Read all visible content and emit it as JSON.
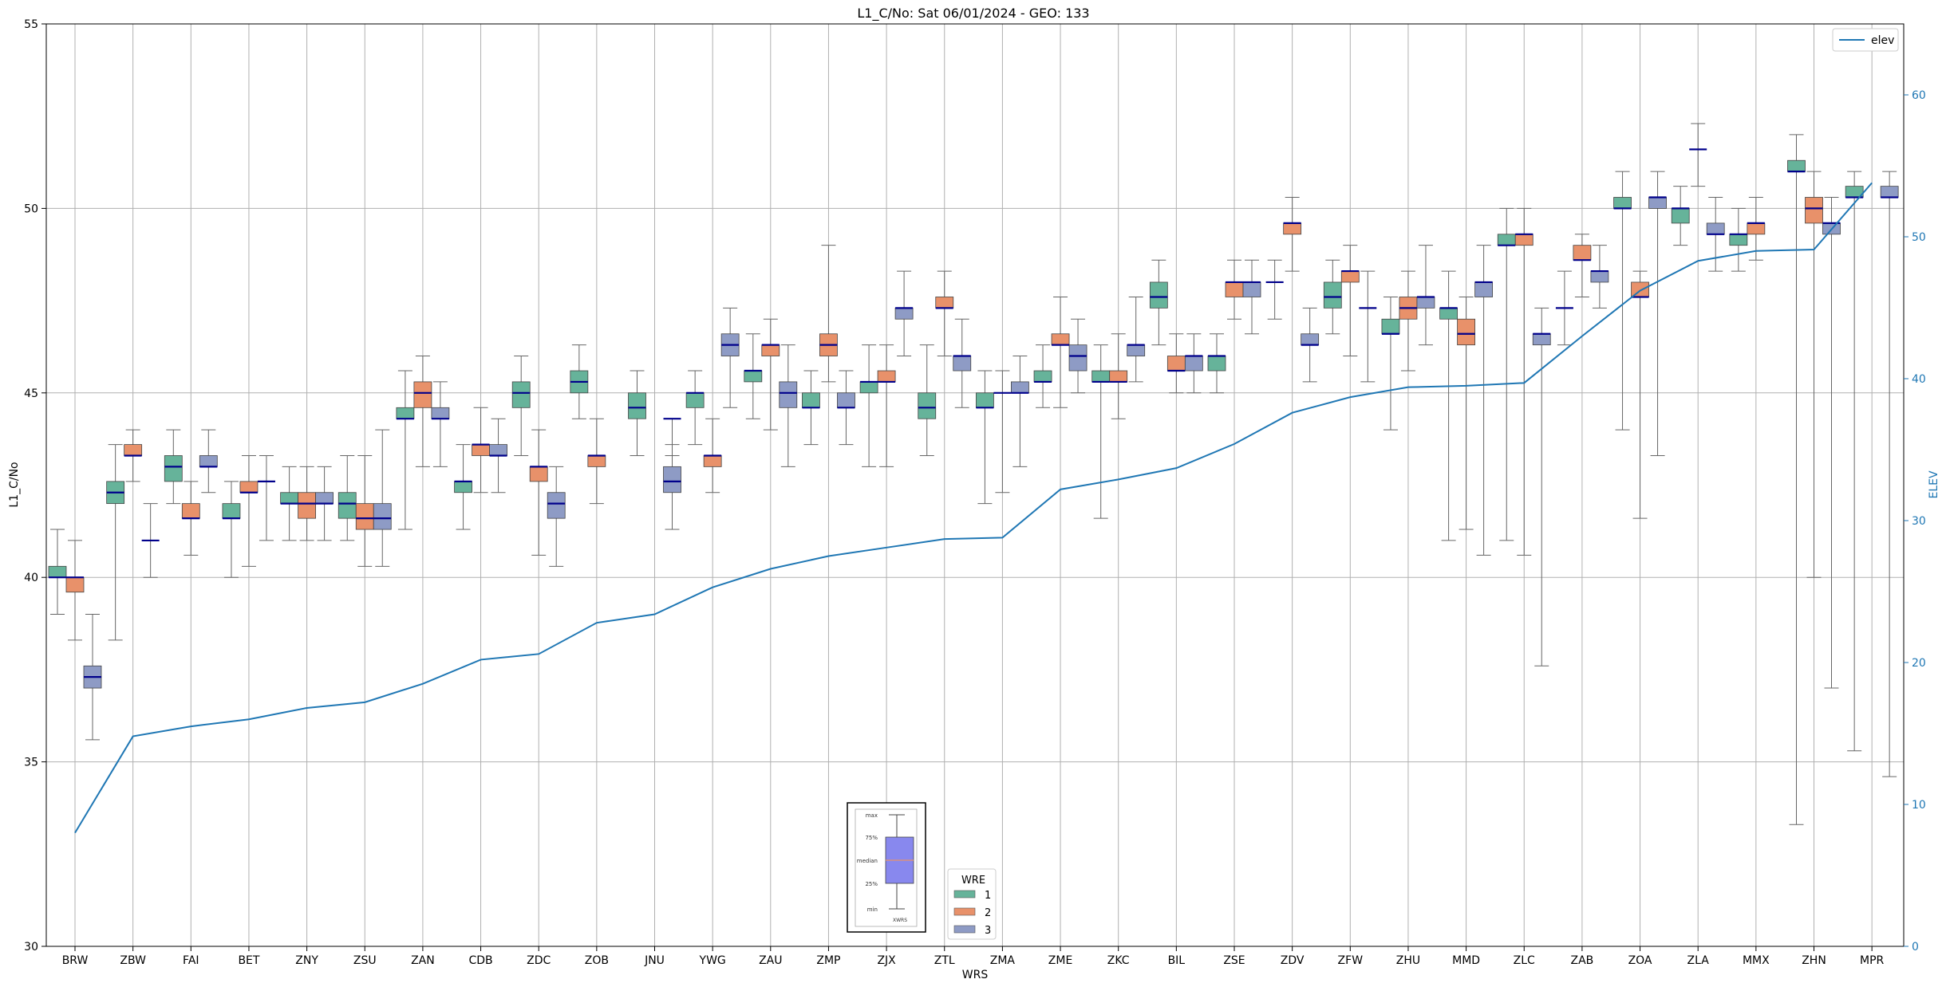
{
  "chart_data": {
    "type": "box",
    "title": "L1_C/No: Sat 06/01/2024 - GEO: 133",
    "xlabel": "WRS",
    "ylabel": "L1_C/No",
    "y2label": "ELEV",
    "ylim": [
      30,
      55
    ],
    "y2lim": [
      0,
      65
    ],
    "yticks": [
      30,
      35,
      40,
      45,
      50,
      55
    ],
    "y2ticks": [
      0,
      10,
      20,
      30,
      40,
      50,
      60
    ],
    "grid": true,
    "categories": [
      "BRW",
      "ZBW",
      "FAI",
      "BET",
      "ZNY",
      "ZSU",
      "ZAN",
      "CDB",
      "ZDC",
      "ZOB",
      "JNU",
      "YWG",
      "ZAU",
      "ZMP",
      "ZJX",
      "ZTL",
      "ZMA",
      "ZME",
      "ZKC",
      "BIL",
      "ZSE",
      "ZDV",
      "ZFW",
      "ZHU",
      "MMD",
      "ZLC",
      "ZAB",
      "ZOA",
      "ZLA",
      "MMX",
      "ZHN",
      "MPR"
    ],
    "colors": {
      "1": "#66b39a",
      "2": "#e8916a",
      "3": "#8e9bc5",
      "median": "#00008b",
      "whisker": "#666666",
      "elev": "#1f77b4",
      "y2axis": "#1f77b4"
    },
    "legend_wre": {
      "title": "WRE",
      "entries": [
        "1",
        "2",
        "3"
      ],
      "position": "bottom-center"
    },
    "legend_elev": {
      "entries": [
        "elev"
      ],
      "position": "top-right"
    },
    "boxes": [
      {
        "wrs": "BRW",
        "wre": 1,
        "min": 39.0,
        "q1": 40.0,
        "median": 40.0,
        "q3": 40.3,
        "max": 41.3
      },
      {
        "wrs": "BRW",
        "wre": 2,
        "min": 38.3,
        "q1": 39.6,
        "median": 40.0,
        "q3": 40.0,
        "max": 41.0
      },
      {
        "wrs": "BRW",
        "wre": 3,
        "min": 35.6,
        "q1": 37.0,
        "median": 37.3,
        "q3": 37.6,
        "max": 39.0
      },
      {
        "wrs": "ZBW",
        "wre": 1,
        "min": 38.3,
        "q1": 42.0,
        "median": 42.3,
        "q3": 42.6,
        "max": 43.6
      },
      {
        "wrs": "ZBW",
        "wre": 2,
        "min": 42.6,
        "q1": 43.3,
        "median": 43.3,
        "q3": 43.6,
        "max": 44.0
      },
      {
        "wrs": "ZBW",
        "wre": 3,
        "min": 40.0,
        "q1": 41.0,
        "median": 41.0,
        "q3": 41.0,
        "max": 42.0
      },
      {
        "wrs": "FAI",
        "wre": 1,
        "min": 42.0,
        "q1": 42.6,
        "median": 43.0,
        "q3": 43.3,
        "max": 44.0
      },
      {
        "wrs": "FAI",
        "wre": 2,
        "min": 40.6,
        "q1": 41.6,
        "median": 41.6,
        "q3": 42.0,
        "max": 42.6
      },
      {
        "wrs": "FAI",
        "wre": 3,
        "min": 42.3,
        "q1": 43.0,
        "median": 43.0,
        "q3": 43.3,
        "max": 44.0
      },
      {
        "wrs": "BET",
        "wre": 1,
        "min": 40.0,
        "q1": 41.6,
        "median": 41.6,
        "q3": 42.0,
        "max": 42.6
      },
      {
        "wrs": "BET",
        "wre": 2,
        "min": 40.3,
        "q1": 42.3,
        "median": 42.3,
        "q3": 42.6,
        "max": 43.3
      },
      {
        "wrs": "BET",
        "wre": 3,
        "min": 41.0,
        "q1": 42.6,
        "median": 42.6,
        "q3": 42.6,
        "max": 43.3
      },
      {
        "wrs": "ZNY",
        "wre": 1,
        "min": 41.0,
        "q1": 42.0,
        "median": 42.0,
        "q3": 42.3,
        "max": 43.0
      },
      {
        "wrs": "ZNY",
        "wre": 2,
        "min": 41.0,
        "q1": 41.6,
        "median": 42.0,
        "q3": 42.3,
        "max": 43.0
      },
      {
        "wrs": "ZNY",
        "wre": 3,
        "min": 41.0,
        "q1": 42.0,
        "median": 42.0,
        "q3": 42.3,
        "max": 43.0
      },
      {
        "wrs": "ZSU",
        "wre": 1,
        "min": 41.0,
        "q1": 41.6,
        "median": 42.0,
        "q3": 42.3,
        "max": 43.3
      },
      {
        "wrs": "ZSU",
        "wre": 2,
        "min": 40.3,
        "q1": 41.3,
        "median": 41.6,
        "q3": 42.0,
        "max": 43.3
      },
      {
        "wrs": "ZSU",
        "wre": 3,
        "min": 40.3,
        "q1": 41.3,
        "median": 41.6,
        "q3": 42.0,
        "max": 44.0
      },
      {
        "wrs": "ZAN",
        "wre": 1,
        "min": 41.3,
        "q1": 44.3,
        "median": 44.3,
        "q3": 44.6,
        "max": 45.6
      },
      {
        "wrs": "ZAN",
        "wre": 2,
        "min": 43.0,
        "q1": 44.6,
        "median": 45.0,
        "q3": 45.3,
        "max": 46.0
      },
      {
        "wrs": "ZAN",
        "wre": 3,
        "min": 43.0,
        "q1": 44.3,
        "median": 44.3,
        "q3": 44.6,
        "max": 45.3
      },
      {
        "wrs": "CDB",
        "wre": 1,
        "min": 41.3,
        "q1": 42.3,
        "median": 42.6,
        "q3": 42.6,
        "max": 43.6
      },
      {
        "wrs": "CDB",
        "wre": 2,
        "min": 42.3,
        "q1": 43.3,
        "median": 43.6,
        "q3": 43.6,
        "max": 44.6
      },
      {
        "wrs": "CDB",
        "wre": 3,
        "min": 42.3,
        "q1": 43.3,
        "median": 43.3,
        "q3": 43.6,
        "max": 44.3
      },
      {
        "wrs": "ZDC",
        "wre": 1,
        "min": 43.3,
        "q1": 44.6,
        "median": 45.0,
        "q3": 45.3,
        "max": 46.0
      },
      {
        "wrs": "ZDC",
        "wre": 2,
        "min": 40.6,
        "q1": 42.6,
        "median": 43.0,
        "q3": 43.0,
        "max": 44.0
      },
      {
        "wrs": "ZDC",
        "wre": 3,
        "min": 40.3,
        "q1": 41.6,
        "median": 42.0,
        "q3": 42.3,
        "max": 43.0
      },
      {
        "wrs": "ZOB",
        "wre": 1,
        "min": 44.3,
        "q1": 45.0,
        "median": 45.3,
        "q3": 45.6,
        "max": 46.3
      },
      {
        "wrs": "ZOB",
        "wre": 2,
        "min": 42.0,
        "q1": 43.0,
        "median": 43.3,
        "q3": 43.3,
        "max": 44.3
      },
      {
        "wrs": "JNU",
        "wre": 1,
        "min": 43.3,
        "q1": 44.3,
        "median": 44.6,
        "q3": 45.0,
        "max": 45.6
      },
      {
        "wrs": "JNU",
        "wre": 3,
        "min": 43.3,
        "q1": 44.3,
        "median": 44.3,
        "q3": 44.3,
        "max": 44.3
      },
      {
        "wrs": "JNU",
        "wre": 3,
        "min": 41.3,
        "q1": 42.3,
        "median": 42.6,
        "q3": 43.0,
        "max": 43.6
      },
      {
        "wrs": "YWG",
        "wre": 1,
        "min": 43.6,
        "q1": 44.6,
        "median": 45.0,
        "q3": 45.0,
        "max": 45.6
      },
      {
        "wrs": "YWG",
        "wre": 2,
        "min": 42.3,
        "q1": 43.0,
        "median": 43.3,
        "q3": 43.3,
        "max": 44.3
      },
      {
        "wrs": "YWG",
        "wre": 3,
        "min": 44.6,
        "q1": 46.0,
        "median": 46.3,
        "q3": 46.6,
        "max": 47.3
      },
      {
        "wrs": "ZAU",
        "wre": 1,
        "min": 44.3,
        "q1": 45.3,
        "median": 45.6,
        "q3": 45.6,
        "max": 46.6
      },
      {
        "wrs": "ZAU",
        "wre": 2,
        "min": 44.0,
        "q1": 46.0,
        "median": 46.3,
        "q3": 46.3,
        "max": 47.0
      },
      {
        "wrs": "ZAU",
        "wre": 3,
        "min": 43.0,
        "q1": 44.6,
        "median": 45.0,
        "q3": 45.3,
        "max": 46.3
      },
      {
        "wrs": "ZMP",
        "wre": 1,
        "min": 43.6,
        "q1": 44.6,
        "median": 44.6,
        "q3": 45.0,
        "max": 45.6
      },
      {
        "wrs": "ZMP",
        "wre": 2,
        "min": 45.3,
        "q1": 46.0,
        "median": 46.3,
        "q3": 46.6,
        "max": 49.0
      },
      {
        "wrs": "ZMP",
        "wre": 3,
        "min": 43.6,
        "q1": 44.6,
        "median": 44.6,
        "q3": 45.0,
        "max": 45.6
      },
      {
        "wrs": "ZJX",
        "wre": 1,
        "min": 43.0,
        "q1": 45.0,
        "median": 45.3,
        "q3": 45.3,
        "max": 46.3
      },
      {
        "wrs": "ZJX",
        "wre": 2,
        "min": 43.0,
        "q1": 45.3,
        "median": 45.3,
        "q3": 45.6,
        "max": 46.3
      },
      {
        "wrs": "ZJX",
        "wre": 3,
        "min": 46.0,
        "q1": 47.0,
        "median": 47.3,
        "q3": 47.3,
        "max": 48.3
      },
      {
        "wrs": "ZTL",
        "wre": 1,
        "min": 43.3,
        "q1": 44.3,
        "median": 44.6,
        "q3": 45.0,
        "max": 46.3
      },
      {
        "wrs": "ZTL",
        "wre": 2,
        "min": 46.0,
        "q1": 47.3,
        "median": 47.3,
        "q3": 47.6,
        "max": 48.3
      },
      {
        "wrs": "ZTL",
        "wre": 3,
        "min": 44.6,
        "q1": 45.6,
        "median": 46.0,
        "q3": 46.0,
        "max": 47.0
      },
      {
        "wrs": "ZMA",
        "wre": 1,
        "min": 42.0,
        "q1": 44.6,
        "median": 44.6,
        "q3": 45.0,
        "max": 45.6
      },
      {
        "wrs": "ZMA",
        "wre": 2,
        "min": 42.3,
        "q1": 45.0,
        "median": 45.0,
        "q3": 45.0,
        "max": 45.6
      },
      {
        "wrs": "ZMA",
        "wre": 3,
        "min": 43.0,
        "q1": 45.0,
        "median": 45.0,
        "q3": 45.3,
        "max": 46.0
      },
      {
        "wrs": "ZME",
        "wre": 1,
        "min": 44.6,
        "q1": 45.3,
        "median": 45.3,
        "q3": 45.6,
        "max": 46.3
      },
      {
        "wrs": "ZME",
        "wre": 2,
        "min": 44.6,
        "q1": 46.3,
        "median": 46.3,
        "q3": 46.6,
        "max": 47.6
      },
      {
        "wrs": "ZME",
        "wre": 3,
        "min": 45.0,
        "q1": 45.6,
        "median": 46.0,
        "q3": 46.3,
        "max": 47.0
      },
      {
        "wrs": "ZKC",
        "wre": 1,
        "min": 41.6,
        "q1": 45.3,
        "median": 45.3,
        "q3": 45.6,
        "max": 46.3
      },
      {
        "wrs": "ZKC",
        "wre": 2,
        "min": 44.3,
        "q1": 45.3,
        "median": 45.3,
        "q3": 45.6,
        "max": 46.6
      },
      {
        "wrs": "ZKC",
        "wre": 3,
        "min": 45.3,
        "q1": 46.0,
        "median": 46.3,
        "q3": 46.3,
        "max": 47.6
      },
      {
        "wrs": "BIL",
        "wre": 1,
        "min": 46.3,
        "q1": 47.3,
        "median": 47.6,
        "q3": 48.0,
        "max": 48.6
      },
      {
        "wrs": "BIL",
        "wre": 2,
        "min": 45.0,
        "q1": 45.6,
        "median": 45.6,
        "q3": 46.0,
        "max": 46.6
      },
      {
        "wrs": "BIL",
        "wre": 3,
        "min": 45.0,
        "q1": 45.6,
        "median": 46.0,
        "q3": 46.0,
        "max": 46.6
      },
      {
        "wrs": "ZSE",
        "wre": 1,
        "min": 45.0,
        "q1": 45.6,
        "median": 46.0,
        "q3": 46.0,
        "max": 46.6
      },
      {
        "wrs": "ZSE",
        "wre": 2,
        "min": 47.0,
        "q1": 47.6,
        "median": 48.0,
        "q3": 48.0,
        "max": 48.6
      },
      {
        "wrs": "ZSE",
        "wre": 3,
        "min": 46.6,
        "q1": 47.6,
        "median": 48.0,
        "q3": 48.0,
        "max": 48.6
      },
      {
        "wrs": "ZDV",
        "wre": 1,
        "min": 47.0,
        "q1": 48.0,
        "median": 48.0,
        "q3": 48.0,
        "max": 48.6
      },
      {
        "wrs": "ZDV",
        "wre": 2,
        "min": 48.3,
        "q1": 49.3,
        "median": 49.6,
        "q3": 49.6,
        "max": 50.3
      },
      {
        "wrs": "ZDV",
        "wre": 3,
        "min": 45.3,
        "q1": 46.3,
        "median": 46.3,
        "q3": 46.6,
        "max": 47.3
      },
      {
        "wrs": "ZFW",
        "wre": 1,
        "min": 46.6,
        "q1": 47.3,
        "median": 47.6,
        "q3": 48.0,
        "max": 48.6
      },
      {
        "wrs": "ZFW",
        "wre": 2,
        "min": 46.0,
        "q1": 48.0,
        "median": 48.3,
        "q3": 48.3,
        "max": 49.0
      },
      {
        "wrs": "ZFW",
        "wre": 3,
        "min": 45.3,
        "q1": 47.3,
        "median": 47.3,
        "q3": 47.3,
        "max": 48.3
      },
      {
        "wrs": "ZHU",
        "wre": 1,
        "min": 44.0,
        "q1": 46.6,
        "median": 46.6,
        "q3": 47.0,
        "max": 47.6
      },
      {
        "wrs": "ZHU",
        "wre": 2,
        "min": 45.6,
        "q1": 47.0,
        "median": 47.3,
        "q3": 47.6,
        "max": 48.3
      },
      {
        "wrs": "ZHU",
        "wre": 3,
        "min": 46.3,
        "q1": 47.3,
        "median": 47.6,
        "q3": 47.6,
        "max": 49.0
      },
      {
        "wrs": "MMD",
        "wre": 1,
        "min": 41.0,
        "q1": 47.0,
        "median": 47.3,
        "q3": 47.3,
        "max": 48.3
      },
      {
        "wrs": "MMD",
        "wre": 2,
        "min": 41.3,
        "q1": 46.3,
        "median": 46.6,
        "q3": 47.0,
        "max": 47.6
      },
      {
        "wrs": "MMD",
        "wre": 3,
        "min": 40.6,
        "q1": 47.6,
        "median": 48.0,
        "q3": 48.0,
        "max": 49.0
      },
      {
        "wrs": "ZLC",
        "wre": 1,
        "min": 41.0,
        "q1": 49.0,
        "median": 49.0,
        "q3": 49.3,
        "max": 50.0
      },
      {
        "wrs": "ZLC",
        "wre": 2,
        "min": 40.6,
        "q1": 49.0,
        "median": 49.3,
        "q3": 49.3,
        "max": 50.0
      },
      {
        "wrs": "ZLC",
        "wre": 3,
        "min": 37.6,
        "q1": 46.3,
        "median": 46.6,
        "q3": 46.6,
        "max": 47.3
      },
      {
        "wrs": "ZAB",
        "wre": 1,
        "min": 46.3,
        "q1": 47.3,
        "median": 47.3,
        "q3": 47.3,
        "max": 48.3
      },
      {
        "wrs": "ZAB",
        "wre": 2,
        "min": 47.6,
        "q1": 48.6,
        "median": 48.6,
        "q3": 49.0,
        "max": 49.3
      },
      {
        "wrs": "ZAB",
        "wre": 3,
        "min": 47.3,
        "q1": 48.0,
        "median": 48.3,
        "q3": 48.3,
        "max": 49.0
      },
      {
        "wrs": "ZOA",
        "wre": 1,
        "min": 44.0,
        "q1": 50.0,
        "median": 50.0,
        "q3": 50.3,
        "max": 51.0
      },
      {
        "wrs": "ZOA",
        "wre": 2,
        "min": 41.6,
        "q1": 47.6,
        "median": 47.6,
        "q3": 48.0,
        "max": 48.3
      },
      {
        "wrs": "ZOA",
        "wre": 3,
        "min": 43.3,
        "q1": 50.0,
        "median": 50.3,
        "q3": 50.3,
        "max": 51.0
      },
      {
        "wrs": "ZLA",
        "wre": 1,
        "min": 49.0,
        "q1": 49.6,
        "median": 50.0,
        "q3": 50.0,
        "max": 50.6
      },
      {
        "wrs": "ZLA",
        "wre": 2,
        "min": 50.6,
        "q1": 51.6,
        "median": 51.6,
        "q3": 51.6,
        "max": 52.3
      },
      {
        "wrs": "ZLA",
        "wre": 3,
        "min": 48.3,
        "q1": 49.3,
        "median": 49.3,
        "q3": 49.6,
        "max": 50.3
      },
      {
        "wrs": "MMX",
        "wre": 1,
        "min": 48.3,
        "q1": 49.0,
        "median": 49.3,
        "q3": 49.3,
        "max": 50.0
      },
      {
        "wrs": "MMX",
        "wre": 2,
        "min": 48.6,
        "q1": 49.3,
        "median": 49.6,
        "q3": 49.6,
        "max": 50.3
      },
      {
        "wrs": "ZHN",
        "wre": 1,
        "min": 33.3,
        "q1": 51.0,
        "median": 51.0,
        "q3": 51.3,
        "max": 52.0
      },
      {
        "wrs": "ZHN",
        "wre": 2,
        "min": 40.0,
        "q1": 49.6,
        "median": 50.0,
        "q3": 50.3,
        "max": 51.0
      },
      {
        "wrs": "ZHN",
        "wre": 3,
        "min": 37.0,
        "q1": 49.3,
        "median": 49.6,
        "q3": 49.6,
        "max": 50.3
      },
      {
        "wrs": "MPR",
        "wre": 1,
        "min": 35.3,
        "q1": 50.3,
        "median": 50.3,
        "q3": 50.6,
        "max": 51.0
      },
      {
        "wrs": "MPR",
        "wre": 3,
        "min": 34.6,
        "q1": 50.3,
        "median": 50.3,
        "q3": 50.6,
        "max": 51.0
      }
    ],
    "elev": [
      8,
      14.8,
      15.5,
      16,
      16.8,
      17.2,
      18.5,
      20.2,
      20.6,
      22.8,
      23.4,
      25.3,
      26.6,
      27.5,
      28.1,
      28.7,
      28.8,
      32.2,
      32.9,
      33.7,
      35.4,
      37.6,
      38.7,
      39.4,
      39.5,
      39.7,
      43.0,
      46.2,
      48.3,
      49.0,
      49.1,
      53.8
    ]
  }
}
